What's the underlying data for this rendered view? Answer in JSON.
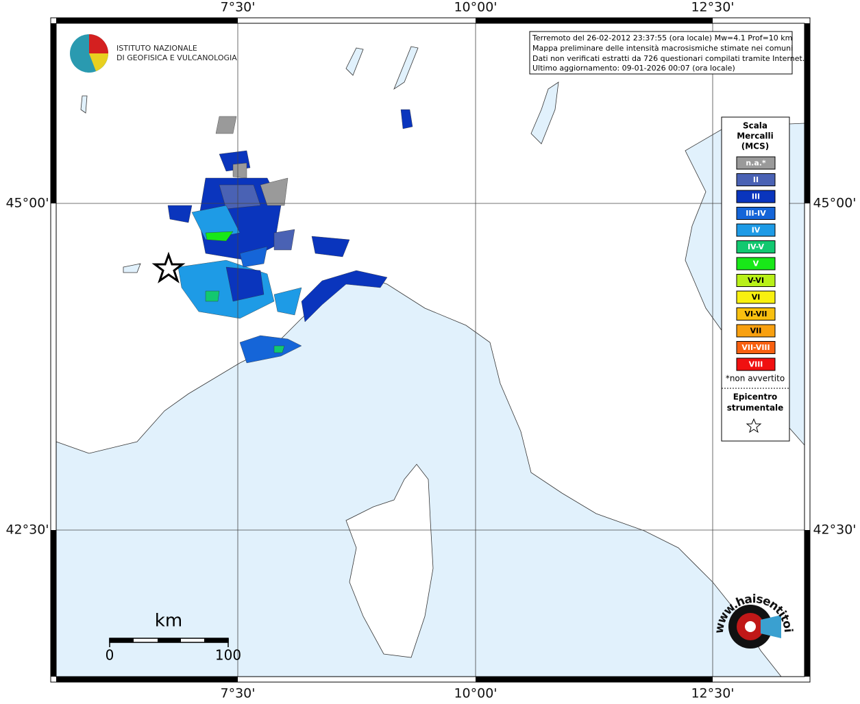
{
  "header": {
    "lines": [
      "Terremoto del 26-02-2012 23:37:55 (ora locale) Mw=4.1 Prof=10 km",
      "Mappa preliminare delle intensità macrosismiche stimate nei comuni",
      "Dati non verificati estratti da 726 questionari compilati tramite Internet.",
      "Ultimo aggiornamento: 09-01-2026 00:07 (ora locale)"
    ]
  },
  "logo": {
    "lines": [
      "ISTITUTO NAZIONALE",
      "DI GEOFISICA E VULCANOLOGIA"
    ]
  },
  "graticule": {
    "longitudes": [
      "7°30'",
      "10°00'",
      "12°30'"
    ],
    "latitudes": [
      "45°00'",
      "42°30'"
    ]
  },
  "legend": {
    "title": [
      "Scala",
      "Mercalli",
      "(MCS)"
    ],
    "classes": [
      {
        "label": "n.a.*",
        "color": "#9a9a9a"
      },
      {
        "label": "II",
        "color": "#4a62b4"
      },
      {
        "label": "III",
        "color": "#0a35bd"
      },
      {
        "label": "III-IV",
        "color": "#1565d8"
      },
      {
        "label": "IV",
        "color": "#1e9be6"
      },
      {
        "label": "IV-V",
        "color": "#12c870"
      },
      {
        "label": "V",
        "color": "#18e818"
      },
      {
        "label": "V-VI",
        "color": "#b8f018"
      },
      {
        "label": "VI",
        "color": "#f8f010"
      },
      {
        "label": "VI-VII",
        "color": "#f8c010"
      },
      {
        "label": "VII",
        "color": "#f8a010"
      },
      {
        "label": "VII-VIII",
        "color": "#f86010"
      },
      {
        "label": "VIII",
        "color": "#f01010"
      }
    ],
    "note": "*non avvertito",
    "epicenter": [
      "Epicentro",
      "strumentale"
    ]
  },
  "scale_bar": {
    "unit": "km",
    "labels": [
      "0",
      "100"
    ]
  },
  "watermark": {
    "text": "www.haisentitoilterremoto.it"
  }
}
